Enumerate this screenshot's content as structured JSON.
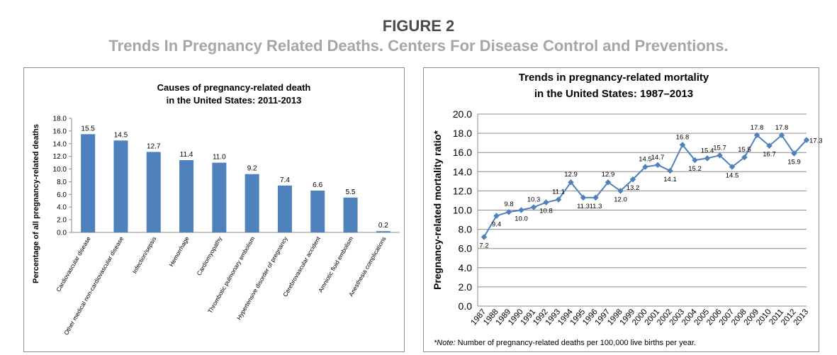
{
  "figure": {
    "title": "FIGURE 2",
    "subtitle": "Trends In Pregnancy Related Deaths. Centers For Disease Control and Preventions."
  },
  "chart_data": [
    {
      "type": "bar",
      "title_lines": [
        "Causes of pregnancy-related death",
        "in the United States: 2011-2013"
      ],
      "xlabel": "",
      "ylabel": "Percentage of all pregnancy-related deaths",
      "ylim": [
        0,
        18
      ],
      "yticks": [
        "0.0",
        "2.0",
        "4.0",
        "6.0",
        "8.0",
        "10.0",
        "12.0",
        "14.0",
        "16.0",
        "18.0"
      ],
      "grid": false,
      "bar_color": "#4f81bd",
      "categories": [
        "Cardiovascular disease",
        "Other medical non-cardiovascular disease",
        "Infection/sepsis",
        "Hemorrhage",
        "Cardiomyopathy",
        "Thrombotic pulmonary embolism",
        "Hypertensive disorder of pregnancy",
        "Cerebrovascular accident",
        "Amniotic fluid embolism",
        "Anesthesia complications"
      ],
      "values": [
        15.5,
        14.5,
        12.7,
        11.4,
        11.0,
        9.2,
        7.4,
        6.6,
        5.5,
        0.2
      ],
      "value_labels": [
        "15.5",
        "14.5",
        "12.7",
        "11.4",
        "11.0",
        "9.2",
        "7.4",
        "6.6",
        "5.5",
        "0.2"
      ]
    },
    {
      "type": "line",
      "title_lines": [
        "Trends in pregnancy-related mortality",
        "in the United States: 1987–2013"
      ],
      "xlabel": "",
      "ylabel": "Pregnancy-related mortality ratio*",
      "ylim": [
        0,
        20
      ],
      "yticks": [
        "0.0",
        "2.0",
        "4.0",
        "6.0",
        "8.0",
        "10.0",
        "12.0",
        "14.0",
        "16.0",
        "18.0",
        "20.0"
      ],
      "grid": true,
      "line_color": "#4f81bd",
      "x": [
        "1987",
        "1988",
        "1989",
        "1990",
        "1991",
        "1992",
        "1993",
        "1994",
        "1995",
        "1996",
        "1997",
        "1998",
        "1999",
        "2000",
        "2001",
        "2002",
        "2003",
        "2004",
        "2005",
        "2006",
        "2007",
        "2008",
        "2009",
        "2010",
        "2011",
        "2012",
        "2013"
      ],
      "values": [
        7.2,
        9.4,
        9.8,
        10.0,
        10.3,
        10.8,
        11.1,
        12.9,
        11.3,
        11.3,
        12.9,
        12.0,
        13.2,
        14.5,
        14.7,
        14.1,
        16.8,
        15.2,
        15.4,
        15.7,
        14.5,
        15.5,
        17.8,
        16.7,
        17.8,
        15.9,
        17.3
      ],
      "value_labels": [
        "7.2",
        "9.4",
        "9.8",
        "10.0",
        "10.3",
        "10.8",
        "11.1",
        "12.9",
        "11.3",
        "11.3",
        "12.9",
        "12.0",
        "13.2",
        "14.5",
        "14.7",
        "14.1",
        "16.8",
        "15.2",
        "15.4",
        "15.7",
        "14.5",
        "15.5",
        "17.8",
        "16.7",
        "17.8",
        "15.9",
        "17.3"
      ],
      "note_prefix": "*Note:",
      "note_text": " Number of pregnancy-related deaths per 100,000 live births per year."
    }
  ]
}
